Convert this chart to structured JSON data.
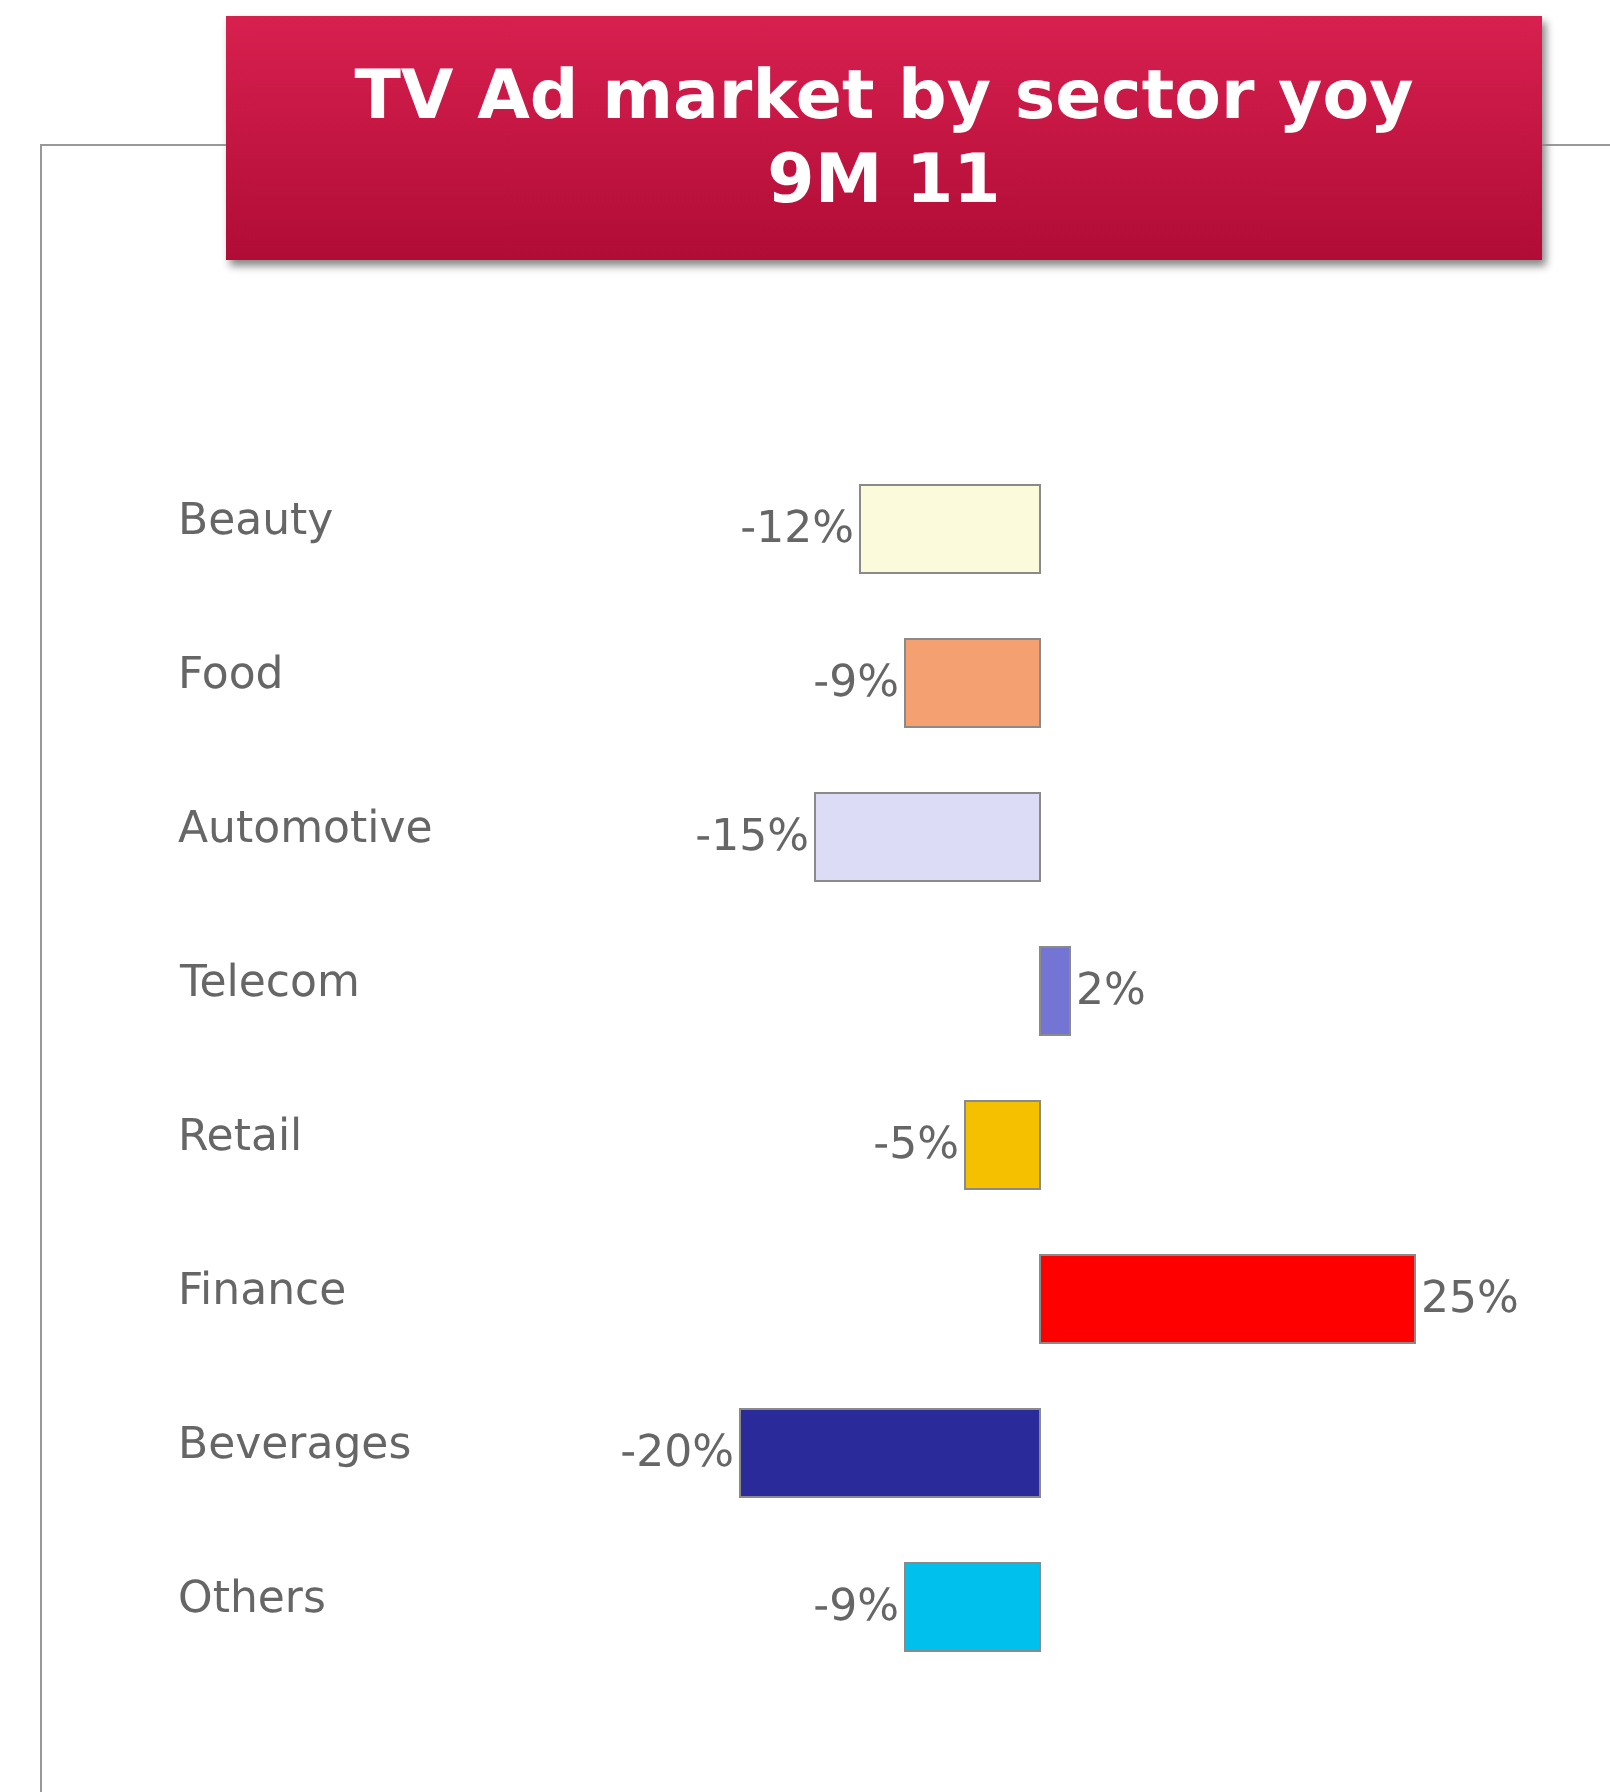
{
  "chart_data": {
    "type": "bar",
    "title": "TV Ad market by sector yoy\n9M 11",
    "orientation": "horizontal",
    "categories": [
      "Beauty",
      "Food",
      "Automotive",
      "Telecom",
      "Retail",
      "Finance",
      "Beverages",
      "Others"
    ],
    "values": [
      -12,
      -9,
      -15,
      2,
      -5,
      25,
      -20,
      -9
    ],
    "value_labels": [
      "-12%",
      "-9%",
      "-15%",
      "2%",
      "-5%",
      "25%",
      "-20%",
      "-9%"
    ],
    "colors": [
      "#fbfbdc",
      "#f4a070",
      "#dcdcf6",
      "#7474d4",
      "#f5c000",
      "#ff0000",
      "#2a2a9a",
      "#00c0ee"
    ]
  }
}
